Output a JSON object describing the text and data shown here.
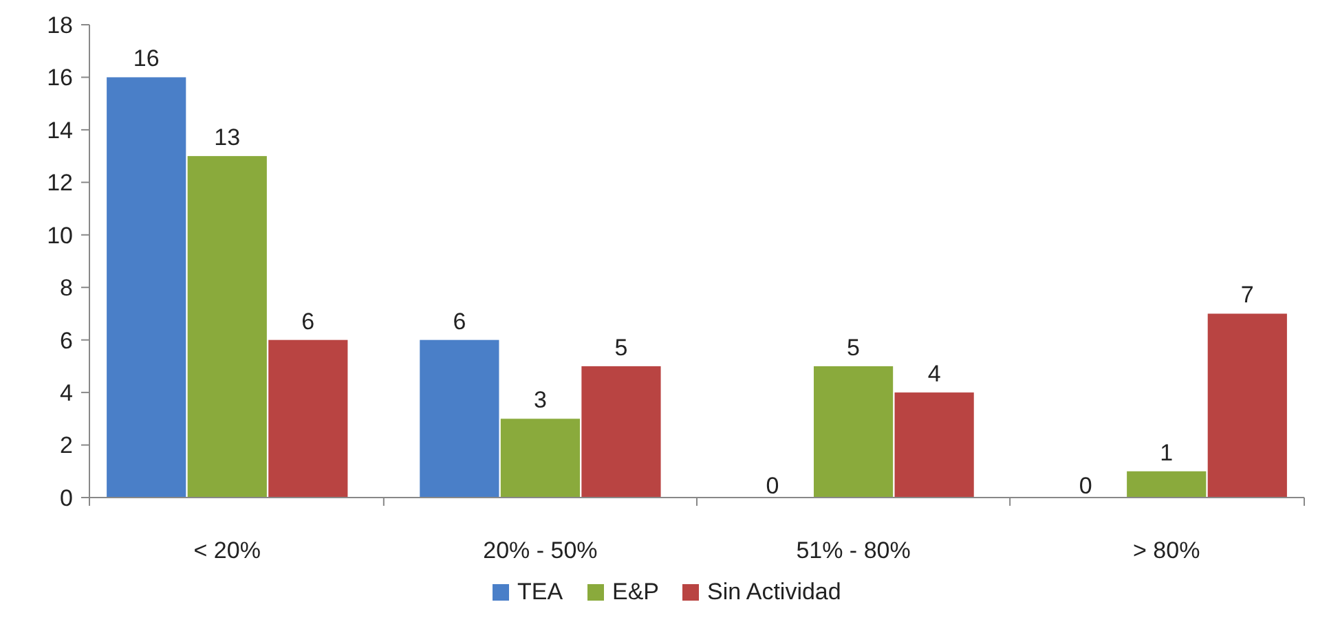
{
  "chart_data": {
    "type": "bar",
    "categories": [
      "< 20%",
      "20% - 50%",
      "51% - 80%",
      "> 80%"
    ],
    "series": [
      {
        "name": "TEA",
        "color": "#4a7fc8",
        "values": [
          16,
          6,
          0,
          0
        ]
      },
      {
        "name": "E&P",
        "color": "#8aaa3c",
        "values": [
          13,
          3,
          5,
          1
        ]
      },
      {
        "name": "Sin Actividad",
        "color": "#b94442",
        "values": [
          6,
          5,
          4,
          7
        ]
      }
    ],
    "ylim": [
      0,
      18
    ],
    "yticks": [
      0,
      2,
      4,
      6,
      8,
      10,
      12,
      14,
      16,
      18
    ],
    "data_labels": true,
    "legend": "bottom"
  }
}
